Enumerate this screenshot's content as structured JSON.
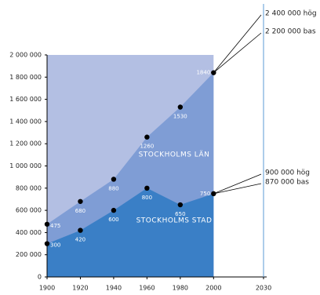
{
  "chart_data": {
    "type": "area",
    "x": [
      1900,
      1920,
      1940,
      1960,
      1980,
      2000
    ],
    "series": [
      {
        "name": "STOCKHOLMS LÄN",
        "color": "#7f9dd5",
        "values": [
          475000,
          680000,
          880000,
          1260000,
          1530000,
          1840000
        ],
        "value_labels": [
          "475",
          "680",
          "880",
          "1260",
          "1530",
          "1840"
        ]
      },
      {
        "name": "STOCKHOLMS STAD",
        "color": "#3a7fc6",
        "values": [
          300000,
          420000,
          600000,
          800000,
          650000,
          750000
        ],
        "value_labels": [
          "300",
          "420",
          "600",
          "800",
          "650",
          "750"
        ]
      }
    ],
    "xlim": [
      1900,
      2030
    ],
    "xticks": [
      1900,
      1920,
      1940,
      1960,
      1980,
      2000,
      2030
    ],
    "ylim": [
      0,
      2000000
    ],
    "yticks": [
      0,
      {
        "value": 200000,
        "label": "200 000"
      },
      {
        "value": 400000,
        "label": "400 000"
      },
      {
        "value": 600000,
        "label": "600 000"
      },
      {
        "value": 800000,
        "label": "800 000"
      },
      {
        "value": 1000000,
        "label": "1 000 000"
      },
      {
        "value": 1200000,
        "label": "1 200 000"
      },
      {
        "value": 1400000,
        "label": "1 400 000"
      },
      {
        "value": 1600000,
        "label": "1 600 000"
      },
      {
        "value": 1800000,
        "label": "1 800 000"
      },
      {
        "value": 2000000,
        "label": "2 000 000"
      }
    ],
    "annotations": [
      "2 400 000 hög",
      "2 200 000 bas",
      "900 000 hög",
      "870 000 bas"
    ],
    "background_color": "#b3bfe3"
  }
}
